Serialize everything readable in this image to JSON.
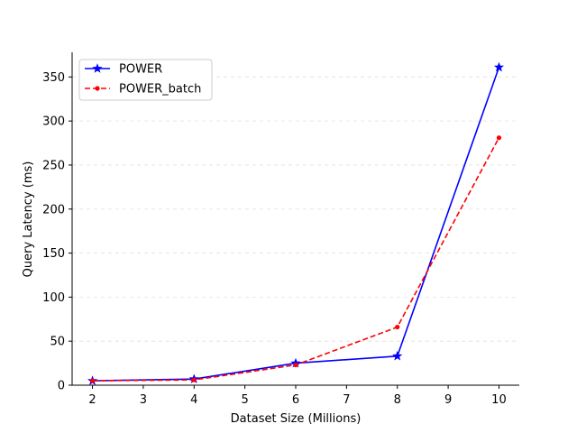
{
  "chart_data": {
    "type": "line",
    "title": "",
    "xlabel": "Dataset Size (Millions)",
    "ylabel": "Query Latency (ms)",
    "xlim": [
      1.6,
      10.4
    ],
    "ylim": [
      0,
      378
    ],
    "xticks": [
      2,
      3,
      4,
      5,
      6,
      7,
      8,
      9,
      10
    ],
    "yticks": [
      0,
      50,
      100,
      150,
      200,
      250,
      300,
      350
    ],
    "grid": "y-dashed",
    "legend": "top-left",
    "series": [
      {
        "name": "POWER",
        "color": "#0000ff",
        "line_style": "solid",
        "marker": "star",
        "x": [
          2,
          4,
          6,
          8,
          10
        ],
        "y": [
          5,
          7,
          25,
          33,
          361
        ]
      },
      {
        "name": "POWER_batch",
        "color": "#ff0000",
        "line_style": "dashed",
        "marker": "circle",
        "x": [
          2,
          4,
          6,
          8,
          10
        ],
        "y": [
          5,
          6,
          23,
          66,
          281
        ]
      }
    ]
  }
}
